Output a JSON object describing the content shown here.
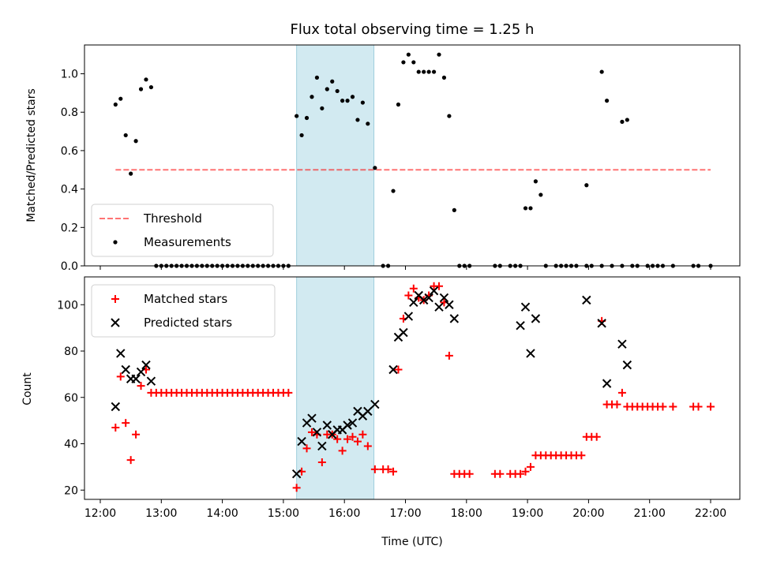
{
  "chart_data": [
    {
      "type": "scatter",
      "title": "Flux total observing time = 1.25 h",
      "ylabel": "Matched/Predicted stars",
      "xlabel": "",
      "ylim": [
        0,
        1.15
      ],
      "yticks": [
        "0.0",
        "0.2",
        "0.4",
        "0.6",
        "0.8",
        "1.0"
      ],
      "x_axis": "time (UTC)",
      "highlight_span": {
        "start": "15:13",
        "end": "16:29",
        "color": "#add8e6"
      },
      "threshold": {
        "name": "Threshold",
        "value": 0.5,
        "x_start": "12:15",
        "x_end": "22:00",
        "color": "#ff0000",
        "style": "dashed"
      },
      "legend": {
        "placement": "lower left",
        "entries": [
          "Threshold",
          "Measurements"
        ]
      },
      "series": [
        {
          "name": "Measurements",
          "color": "#000000",
          "marker": "dot",
          "points": [
            [
              "12:15",
              0.84
            ],
            [
              "12:20",
              0.87
            ],
            [
              "12:25",
              0.68
            ],
            [
              "12:30",
              0.48
            ],
            [
              "12:35",
              0.65
            ],
            [
              "12:40",
              0.92
            ],
            [
              "12:45",
              0.97
            ],
            [
              "12:50",
              0.93
            ],
            [
              "12:55",
              0
            ],
            [
              "13:00",
              0
            ],
            [
              "13:05",
              0
            ],
            [
              "13:10",
              0
            ],
            [
              "13:15",
              0
            ],
            [
              "13:20",
              0
            ],
            [
              "13:25",
              0
            ],
            [
              "13:30",
              0
            ],
            [
              "13:35",
              0
            ],
            [
              "13:40",
              0
            ],
            [
              "13:45",
              0
            ],
            [
              "13:50",
              0
            ],
            [
              "13:55",
              0
            ],
            [
              "14:00",
              0
            ],
            [
              "14:05",
              0
            ],
            [
              "14:10",
              0
            ],
            [
              "14:15",
              0
            ],
            [
              "14:20",
              0
            ],
            [
              "14:25",
              0
            ],
            [
              "14:30",
              0
            ],
            [
              "14:35",
              0
            ],
            [
              "14:40",
              0
            ],
            [
              "14:45",
              0
            ],
            [
              "14:50",
              0
            ],
            [
              "14:55",
              0
            ],
            [
              "15:00",
              0
            ],
            [
              "15:05",
              0
            ],
            [
              "15:13",
              0.78
            ],
            [
              "15:18",
              0.68
            ],
            [
              "15:23",
              0.77
            ],
            [
              "15:28",
              0.88
            ],
            [
              "15:33",
              0.98
            ],
            [
              "15:38",
              0.82
            ],
            [
              "15:43",
              0.92
            ],
            [
              "15:48",
              0.96
            ],
            [
              "15:53",
              0.91
            ],
            [
              "15:58",
              0.86
            ],
            [
              "16:03",
              0.86
            ],
            [
              "16:08",
              0.88
            ],
            [
              "16:13",
              0.76
            ],
            [
              "16:18",
              0.85
            ],
            [
              "16:23",
              0.74
            ],
            [
              "16:30",
              0.51
            ],
            [
              "16:38",
              0
            ],
            [
              "16:43",
              0
            ],
            [
              "16:48",
              0.39
            ],
            [
              "16:53",
              0.84
            ],
            [
              "16:58",
              1.06
            ],
            [
              "17:03",
              1.1
            ],
            [
              "17:08",
              1.06
            ],
            [
              "17:13",
              1.01
            ],
            [
              "17:18",
              1.01
            ],
            [
              "17:23",
              1.01
            ],
            [
              "17:28",
              1.01
            ],
            [
              "17:33",
              1.1
            ],
            [
              "17:38",
              0.98
            ],
            [
              "17:43",
              0.78
            ],
            [
              "17:48",
              0.29
            ],
            [
              "17:53",
              0
            ],
            [
              "17:58",
              0
            ],
            [
              "18:03",
              0
            ],
            [
              "18:28",
              0
            ],
            [
              "18:33",
              0
            ],
            [
              "18:43",
              0
            ],
            [
              "18:48",
              0
            ],
            [
              "18:53",
              0
            ],
            [
              "18:58",
              0.3
            ],
            [
              "19:03",
              0.3
            ],
            [
              "19:08",
              0.44
            ],
            [
              "19:13",
              0.37
            ],
            [
              "19:18",
              0
            ],
            [
              "19:28",
              0
            ],
            [
              "19:33",
              0
            ],
            [
              "19:38",
              0
            ],
            [
              "19:43",
              0
            ],
            [
              "19:48",
              0
            ],
            [
              "19:58",
              0
            ],
            [
              "20:03",
              0
            ],
            [
              "20:13",
              0
            ],
            [
              "20:23",
              0
            ],
            [
              "20:33",
              0
            ],
            [
              "20:43",
              0
            ],
            [
              "20:48",
              0
            ],
            [
              "20:58",
              0
            ],
            [
              "21:03",
              0
            ],
            [
              "21:08",
              0
            ],
            [
              "21:13",
              0
            ],
            [
              "21:23",
              0
            ],
            [
              "21:43",
              0
            ],
            [
              "21:48",
              0
            ],
            [
              "22:00",
              0
            ],
            [
              "19:58",
              0.42
            ],
            [
              "20:13",
              1.01
            ],
            [
              "20:18",
              0.86
            ],
            [
              "20:33",
              0.75
            ],
            [
              "20:38",
              0.76
            ]
          ]
        }
      ]
    },
    {
      "type": "scatter",
      "title": "",
      "xlabel": "Time (UTC)",
      "ylabel": "Count",
      "ylim": [
        16,
        112
      ],
      "yticks": [
        "20",
        "40",
        "60",
        "80",
        "100"
      ],
      "xticks": [
        "12:00",
        "13:00",
        "14:00",
        "15:00",
        "16:00",
        "17:00",
        "18:00",
        "19:00",
        "20:00",
        "21:00",
        "22:00"
      ],
      "x_axis": "time (UTC)",
      "highlight_span": {
        "start": "15:13",
        "end": "16:29",
        "color": "#add8e6"
      },
      "legend": {
        "placement": "upper left",
        "entries": [
          "Matched stars",
          "Predicted stars"
        ]
      },
      "series": [
        {
          "name": "Matched stars",
          "color": "#ff0000",
          "marker": "plus",
          "points": [
            [
              "12:15",
              47
            ],
            [
              "12:20",
              69
            ],
            [
              "12:25",
              49
            ],
            [
              "12:30",
              33
            ],
            [
              "12:35",
              44
            ],
            [
              "12:40",
              65
            ],
            [
              "12:45",
              72
            ],
            [
              "12:50",
              62
            ],
            [
              "12:55",
              62
            ],
            [
              "13:00",
              62
            ],
            [
              "13:05",
              62
            ],
            [
              "13:10",
              62
            ],
            [
              "13:15",
              62
            ],
            [
              "13:20",
              62
            ],
            [
              "13:25",
              62
            ],
            [
              "13:30",
              62
            ],
            [
              "13:35",
              62
            ],
            [
              "13:40",
              62
            ],
            [
              "13:45",
              62
            ],
            [
              "13:50",
              62
            ],
            [
              "13:55",
              62
            ],
            [
              "14:00",
              62
            ],
            [
              "14:05",
              62
            ],
            [
              "14:10",
              62
            ],
            [
              "14:15",
              62
            ],
            [
              "14:20",
              62
            ],
            [
              "14:25",
              62
            ],
            [
              "14:30",
              62
            ],
            [
              "14:35",
              62
            ],
            [
              "14:40",
              62
            ],
            [
              "14:45",
              62
            ],
            [
              "14:50",
              62
            ],
            [
              "14:55",
              62
            ],
            [
              "15:00",
              62
            ],
            [
              "15:05",
              62
            ],
            [
              "15:13",
              21
            ],
            [
              "15:18",
              28
            ],
            [
              "15:23",
              38
            ],
            [
              "15:28",
              45
            ],
            [
              "15:33",
              44
            ],
            [
              "15:38",
              32
            ],
            [
              "15:43",
              44
            ],
            [
              "15:48",
              44
            ],
            [
              "15:53",
              42
            ],
            [
              "15:58",
              37
            ],
            [
              "16:03",
              42
            ],
            [
              "16:08",
              43
            ],
            [
              "16:13",
              41
            ],
            [
              "16:18",
              44
            ],
            [
              "16:23",
              39
            ],
            [
              "16:30",
              29
            ],
            [
              "16:38",
              29
            ],
            [
              "16:43",
              29
            ],
            [
              "16:48",
              28
            ],
            [
              "16:53",
              72
            ],
            [
              "16:58",
              94
            ],
            [
              "17:03",
              104
            ],
            [
              "17:08",
              107
            ],
            [
              "17:13",
              103
            ],
            [
              "17:18",
              102
            ],
            [
              "17:23",
              104
            ],
            [
              "17:28",
              108
            ],
            [
              "17:33",
              108
            ],
            [
              "17:38",
              101
            ],
            [
              "17:43",
              78
            ],
            [
              "17:48",
              27
            ],
            [
              "17:53",
              27
            ],
            [
              "17:58",
              27
            ],
            [
              "18:03",
              27
            ],
            [
              "18:28",
              27
            ],
            [
              "18:33",
              27
            ],
            [
              "18:43",
              27
            ],
            [
              "18:48",
              27
            ],
            [
              "18:53",
              27
            ],
            [
              "18:58",
              28
            ],
            [
              "19:03",
              30
            ],
            [
              "19:08",
              35
            ],
            [
              "19:13",
              35
            ],
            [
              "19:18",
              35
            ],
            [
              "19:23",
              35
            ],
            [
              "19:28",
              35
            ],
            [
              "19:33",
              35
            ],
            [
              "19:38",
              35
            ],
            [
              "19:43",
              35
            ],
            [
              "19:48",
              35
            ],
            [
              "19:53",
              35
            ],
            [
              "19:58",
              43
            ],
            [
              "20:03",
              43
            ],
            [
              "20:08",
              43
            ],
            [
              "20:13",
              93
            ],
            [
              "20:18",
              57
            ],
            [
              "20:23",
              57
            ],
            [
              "20:28",
              57
            ],
            [
              "20:33",
              62
            ],
            [
              "20:38",
              56
            ],
            [
              "20:43",
              56
            ],
            [
              "20:48",
              56
            ],
            [
              "20:53",
              56
            ],
            [
              "20:58",
              56
            ],
            [
              "21:03",
              56
            ],
            [
              "21:08",
              56
            ],
            [
              "21:13",
              56
            ],
            [
              "21:23",
              56
            ],
            [
              "21:43",
              56
            ],
            [
              "21:48",
              56
            ],
            [
              "22:00",
              56
            ]
          ]
        },
        {
          "name": "Predicted stars",
          "color": "#000000",
          "marker": "x",
          "points": [
            [
              "12:15",
              56
            ],
            [
              "12:20",
              79
            ],
            [
              "12:25",
              72
            ],
            [
              "12:30",
              68
            ],
            [
              "12:35",
              68
            ],
            [
              "12:40",
              71
            ],
            [
              "12:45",
              74
            ],
            [
              "12:50",
              67
            ],
            [
              "15:13",
              27
            ],
            [
              "15:18",
              41
            ],
            [
              "15:23",
              49
            ],
            [
              "15:28",
              51
            ],
            [
              "15:33",
              45
            ],
            [
              "15:38",
              39
            ],
            [
              "15:43",
              48
            ],
            [
              "15:48",
              44
            ],
            [
              "15:53",
              46
            ],
            [
              "15:58",
              46
            ],
            [
              "16:03",
              48
            ],
            [
              "16:08",
              49
            ],
            [
              "16:13",
              54
            ],
            [
              "16:18",
              52
            ],
            [
              "16:23",
              54
            ],
            [
              "16:30",
              57
            ],
            [
              "16:48",
              72
            ],
            [
              "16:53",
              86
            ],
            [
              "16:58",
              88
            ],
            [
              "17:03",
              95
            ],
            [
              "17:08",
              101
            ],
            [
              "17:13",
              104
            ],
            [
              "17:18",
              102
            ],
            [
              "17:23",
              103
            ],
            [
              "17:28",
              106
            ],
            [
              "17:33",
              99
            ],
            [
              "17:38",
              103
            ],
            [
              "17:43",
              100
            ],
            [
              "17:48",
              94
            ],
            [
              "18:53",
              91
            ],
            [
              "18:58",
              99
            ],
            [
              "19:03",
              79
            ],
            [
              "19:08",
              94
            ],
            [
              "19:58",
              102
            ],
            [
              "20:13",
              92
            ],
            [
              "20:18",
              66
            ],
            [
              "20:33",
              83
            ],
            [
              "20:38",
              74
            ]
          ]
        }
      ]
    }
  ]
}
